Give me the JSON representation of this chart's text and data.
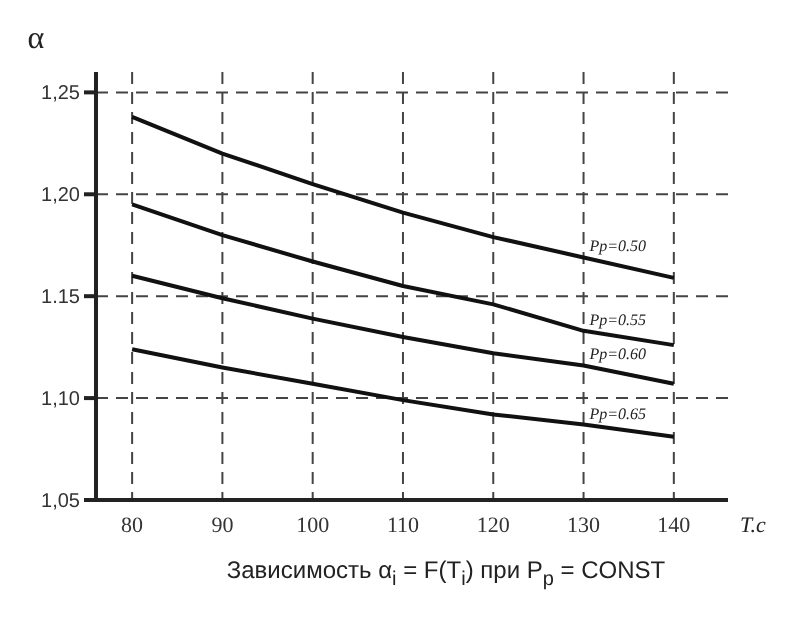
{
  "chart_data": {
    "type": "line",
    "xlabel": "T.c",
    "ylabel": "α",
    "annotations": [
      "Зависимость α$_{i}$ = F(T$_{i}$) при P$_{p}$ = CONST"
    ],
    "x": [
      80,
      90,
      100,
      110,
      120,
      130,
      140
    ],
    "series": [
      {
        "name": "Pp=0.50",
        "color": "#111111",
        "values": [
          1.238,
          1.22,
          1.205,
          1.191,
          1.179,
          1.169,
          1.159
        ]
      },
      {
        "name": "Pp=0.55",
        "color": "#111111",
        "values": [
          1.195,
          1.18,
          1.167,
          1.155,
          1.146,
          1.133,
          1.126
        ]
      },
      {
        "name": "Pp=0.60",
        "color": "#111111",
        "values": [
          1.16,
          1.149,
          1.139,
          1.13,
          1.122,
          1.116,
          1.107
        ]
      },
      {
        "name": "Pp=0.65",
        "color": "#111111",
        "values": [
          1.124,
          1.115,
          1.107,
          1.099,
          1.092,
          1.087,
          1.081
        ]
      }
    ],
    "xlim": [
      76,
      146
    ],
    "xticks": [
      80,
      90,
      100,
      110,
      120,
      130,
      140
    ],
    "ylim": [
      1.05,
      1.26
    ],
    "yticks": [
      {
        "value": 1.05,
        "label": "1,05"
      },
      {
        "value": 1.1,
        "label": "1,10"
      },
      {
        "value": 1.15,
        "label": "1.15"
      },
      {
        "value": 1.2,
        "label": "1,20"
      },
      {
        "value": 1.25,
        "label": "1,25"
      }
    ],
    "grid": true,
    "marker": "none",
    "line_style": "solid",
    "legend": false
  }
}
